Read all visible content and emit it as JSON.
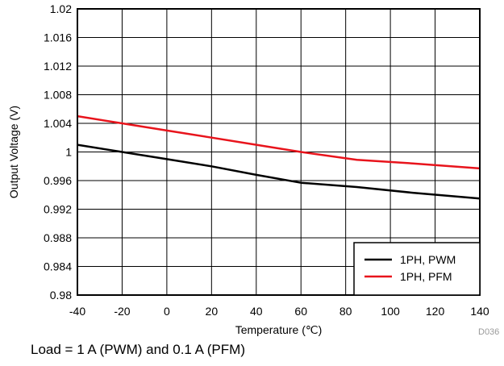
{
  "chart_data": {
    "type": "line",
    "xlabel": "Temperature (℃)",
    "ylabel": "Output Voltage (V)",
    "xlim": [
      -40,
      140
    ],
    "ylim": [
      0.98,
      1.02
    ],
    "x_ticks": [
      -40,
      -20,
      0,
      20,
      40,
      60,
      80,
      100,
      120,
      140
    ],
    "y_ticks": [
      0.98,
      0.984,
      0.988,
      0.992,
      0.996,
      1,
      1.004,
      1.008,
      1.012,
      1.016,
      1.02
    ],
    "grid": true,
    "legend_position": "bottom-right",
    "series": [
      {
        "name": "1PH, PWM",
        "color": "#000000",
        "x": [
          -40,
          -20,
          0,
          20,
          40,
          60,
          85,
          110,
          140
        ],
        "y": [
          1.001,
          1.0,
          0.999,
          0.998,
          0.9968,
          0.9957,
          0.9951,
          0.9943,
          0.9935
        ]
      },
      {
        "name": "1PH, PFM",
        "color": "#e8141c",
        "x": [
          -40,
          -20,
          0,
          20,
          40,
          60,
          85,
          110,
          140
        ],
        "y": [
          1.005,
          1.004,
          1.003,
          1.002,
          1.001,
          1.0,
          0.9989,
          0.9984,
          0.9977
        ]
      }
    ]
  },
  "caption": "Load = 1 A (PWM) and 0.1 A (PFM)",
  "figure_id": "D036"
}
